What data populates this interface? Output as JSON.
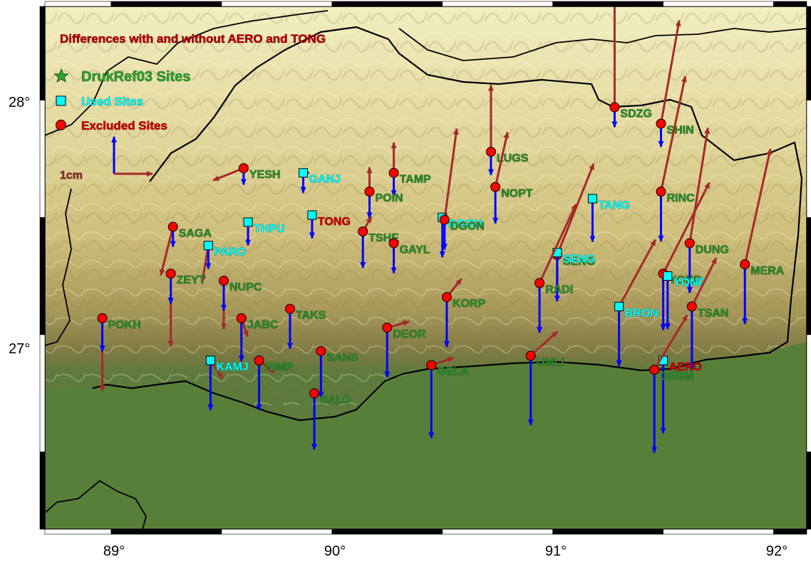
{
  "title": "Differences with and without AERO and TONG",
  "legend": {
    "drukref": "DrukRef03 Sites",
    "used": "Used Sites",
    "excluded": "Excluded Sites",
    "scale": "1cm"
  },
  "axes": {
    "x_ticks": [
      "89°",
      "90°",
      "91°",
      "92°"
    ],
    "y_ticks": [
      "28°",
      "27°"
    ],
    "lon_range": [
      88.7,
      92.15
    ],
    "lat_range": [
      26.17,
      28.4
    ]
  },
  "colors": {
    "excluded": "#ff0000",
    "used": "#00ffff",
    "drukref": "#2ea02e",
    "horizontal_arrow": "#a52a2a",
    "vertical_arrow": "#0000ff",
    "border": "#000000",
    "label_excluded": "#2e8b2e",
    "label_used": "#00ffff",
    "label_title": "#b40000"
  },
  "sites": [
    {
      "name": "SDZG",
      "type": "excluded",
      "lon": 91.28,
      "lat": 27.97,
      "dx": 0.0,
      "dy": 0.95,
      "v": -0.3
    },
    {
      "name": "SHIN",
      "type": "excluded",
      "lon": 91.49,
      "lat": 27.9,
      "dx": 0.15,
      "dy": 0.85,
      "v": -0.35
    },
    {
      "name": "LUGS",
      "type": "excluded",
      "lon": 90.72,
      "lat": 27.78,
      "dx": 0.0,
      "dy": 0.55,
      "v": -0.35
    },
    {
      "name": "NOPT",
      "type": "excluded",
      "lon": 90.74,
      "lat": 27.63,
      "dx": 0.1,
      "dy": 0.45,
      "v": -0.55
    },
    {
      "name": "TAMP",
      "type": "excluded",
      "lon": 90.28,
      "lat": 27.69,
      "dx": 0.0,
      "dy": 0.25,
      "v": -0.35
    },
    {
      "name": "POIN",
      "type": "excluded",
      "lon": 90.17,
      "lat": 27.61,
      "dx": 0.0,
      "dy": 0.2,
      "v": -0.4
    },
    {
      "name": "YESH",
      "type": "excluded",
      "lon": 89.6,
      "lat": 27.71,
      "dx": -0.25,
      "dy": -0.1,
      "v": -0.25
    },
    {
      "name": "GANJ",
      "type": "used",
      "lon": 89.87,
      "lat": 27.69,
      "dx": 0.05,
      "dy": 0.0,
      "v": -0.3
    },
    {
      "name": "TANG",
      "type": "used",
      "lon": 91.18,
      "lat": 27.58,
      "dx": 0.0,
      "dy": 0.0,
      "v": -0.65
    },
    {
      "name": "RINC",
      "type": "excluded",
      "lon": 91.49,
      "lat": 27.61,
      "dx": 0.2,
      "dy": 0.95,
      "v": -0.75
    },
    {
      "name": "SAGA",
      "type": "excluded",
      "lon": 89.28,
      "lat": 27.46,
      "dx": -0.1,
      "dy": -0.4,
      "v": -0.3
    },
    {
      "name": "THPU",
      "type": "used",
      "lon": 89.62,
      "lat": 27.48,
      "dx": 0.0,
      "dy": 0.0,
      "v": -0.35
    },
    {
      "name": "TONG",
      "type": "used",
      "lon": 89.91,
      "lat": 27.51,
      "dx": 0.0,
      "dy": 0.0,
      "v": -0.35
    },
    {
      "name": "TSHE",
      "type": "excluded",
      "lon": 90.14,
      "lat": 27.44,
      "dx": 0.07,
      "dy": 0.12,
      "v": -0.55
    },
    {
      "name": "GAYL",
      "type": "excluded",
      "lon": 90.28,
      "lat": 27.39,
      "dx": 0.0,
      "dy": 0.0,
      "v": -0.45
    },
    {
      "name": "DGON",
      "type": "used",
      "lon": 90.5,
      "lat": 27.5,
      "dx": 0.0,
      "dy": 0.0,
      "v": -0.6
    },
    {
      "name": "DGON",
      "type": "excluded",
      "lon": 90.51,
      "lat": 27.49,
      "dx": 0.1,
      "dy": 0.75,
      "v": -0.45
    },
    {
      "name": "PARO",
      "type": "used",
      "lon": 89.44,
      "lat": 27.38,
      "dx": -0.05,
      "dy": -0.3,
      "v": -0.35
    },
    {
      "name": "SENG",
      "type": "excluded",
      "lon": 91.02,
      "lat": 27.34,
      "dx": 0.3,
      "dy": 0.75,
      "v": -0.7
    },
    {
      "name": "SENG",
      "type": "used",
      "lon": 91.02,
      "lat": 27.35,
      "dx": 0.0,
      "dy": 0.0,
      "v": -0.6
    },
    {
      "name": "DUNG",
      "type": "excluded",
      "lon": 91.62,
      "lat": 27.39,
      "dx": 0.15,
      "dy": 0.95,
      "v": -0.75
    },
    {
      "name": "MERA",
      "type": "excluded",
      "lon": 91.87,
      "lat": 27.3,
      "dx": 0.21,
      "dy": 0.95,
      "v": -0.9
    },
    {
      "name": "ZEYT",
      "type": "excluded",
      "lon": 89.27,
      "lat": 27.26,
      "dx": 0.0,
      "dy": -0.6,
      "v": -0.45
    },
    {
      "name": "NUPC",
      "type": "excluded",
      "lon": 89.51,
      "lat": 27.23,
      "dx": 0.0,
      "dy": -0.4,
      "v": -0.45
    },
    {
      "name": "RADI",
      "type": "excluded",
      "lon": 90.94,
      "lat": 27.22,
      "dx": 0.3,
      "dy": 0.65,
      "v": -0.75
    },
    {
      "name": "YONP",
      "type": "excluded",
      "lon": 91.5,
      "lat": 27.26,
      "dx": 0.38,
      "dy": 0.75,
      "v": -0.85
    },
    {
      "name": "YONP",
      "type": "used",
      "lon": 91.52,
      "lat": 27.25,
      "dx": 0.0,
      "dy": 0.0,
      "v": -0.8
    },
    {
      "name": "KORP",
      "type": "excluded",
      "lon": 90.52,
      "lat": 27.16,
      "dx": 0.12,
      "dy": 0.15,
      "v": -0.75
    },
    {
      "name": "TAKS",
      "type": "excluded",
      "lon": 89.81,
      "lat": 27.11,
      "dx": 0.0,
      "dy": 0.0,
      "v": -0.6
    },
    {
      "name": "BRON",
      "type": "used",
      "lon": 91.3,
      "lat": 27.12,
      "dx": 0.3,
      "dy": 0.55,
      "v": -0.9
    },
    {
      "name": "TSAN",
      "type": "excluded",
      "lon": 91.63,
      "lat": 27.12,
      "dx": 0.2,
      "dy": 0.4,
      "v": -0.95
    },
    {
      "name": "POKH",
      "type": "excluded",
      "lon": 88.96,
      "lat": 27.07,
      "dx": 0.0,
      "dy": -0.6,
      "v": -0.5
    },
    {
      "name": "JABC",
      "type": "excluded",
      "lon": 89.59,
      "lat": 27.07,
      "dx": 0.05,
      "dy": -0.15,
      "v": -0.65
    },
    {
      "name": "DEOR",
      "type": "excluded",
      "lon": 90.25,
      "lat": 27.03,
      "dx": 0.18,
      "dy": 0.05,
      "v": -0.75
    },
    {
      "name": "SANS",
      "type": "excluded",
      "lon": 89.95,
      "lat": 26.93,
      "dx": 0.0,
      "dy": 0.0,
      "v": -0.7
    },
    {
      "name": "UMLI",
      "type": "excluded",
      "lon": 90.9,
      "lat": 26.91,
      "dx": 0.22,
      "dy": 0.2,
      "v": -1.05
    },
    {
      "name": "NIMP",
      "type": "excluded",
      "lon": 89.67,
      "lat": 26.89,
      "dx": 0.12,
      "dy": -0.1,
      "v": -0.75
    },
    {
      "name": "KAMJ",
      "type": "used",
      "lon": 89.45,
      "lat": 26.89,
      "dx": 0.1,
      "dy": -0.15,
      "v": -0.75
    },
    {
      "name": "GELA",
      "type": "excluded",
      "lon": 90.45,
      "lat": 26.87,
      "dx": 0.18,
      "dy": 0.06,
      "v": -1.1
    },
    {
      "name": "AERO",
      "type": "used",
      "lon": 91.5,
      "lat": 26.89,
      "dx": 0.0,
      "dy": 0.0,
      "v": -1.1
    },
    {
      "name": "DEBM",
      "type": "excluded",
      "lon": 91.46,
      "lat": 26.85,
      "dx": 0.27,
      "dy": 0.45,
      "v": -1.25
    },
    {
      "name": "SALD",
      "type": "excluded",
      "lon": 89.92,
      "lat": 26.75,
      "dx": 0.0,
      "dy": 0.0,
      "v": -0.85
    }
  ]
}
